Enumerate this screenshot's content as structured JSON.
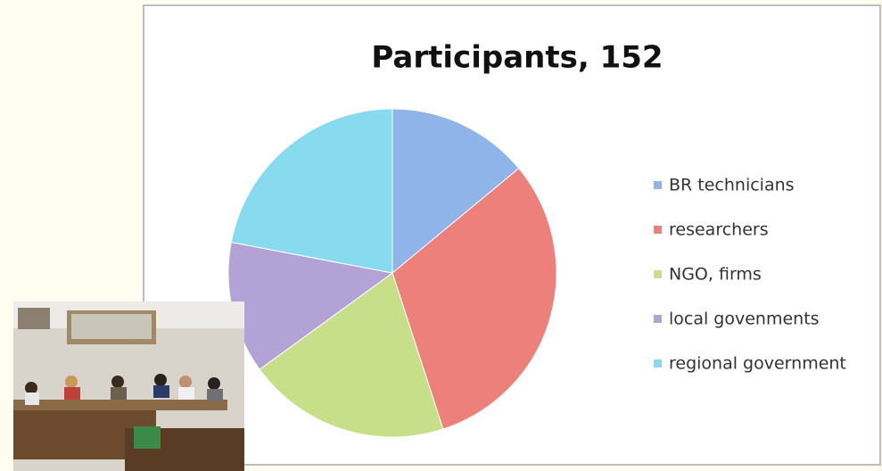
{
  "chart_data": {
    "type": "pie",
    "title": "Participants, 152",
    "categories": [
      "BR technicians",
      "researchers",
      "NGO, firms",
      "local govenments",
      "regional government"
    ],
    "values": [
      14,
      31,
      20,
      13,
      22
    ],
    "colors": [
      "#8fb4ea",
      "#ee807c",
      "#c6df88",
      "#b3a2d6",
      "#88dbef"
    ],
    "legend": "right"
  }
}
